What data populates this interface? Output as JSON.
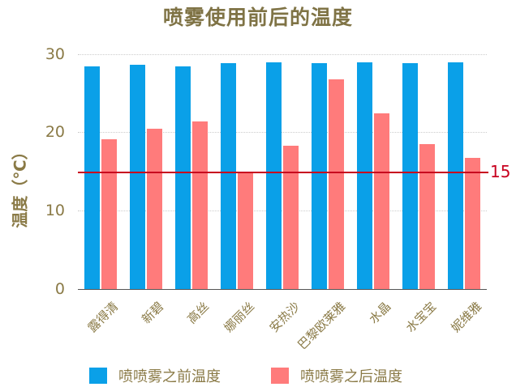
{
  "chart_data": {
    "type": "bar",
    "title": "喷雾使用前后的温度",
    "xlabel": "",
    "ylabel": "温度（℃）",
    "ylim": [
      0,
      30
    ],
    "yticks": [
      0,
      10,
      20,
      30
    ],
    "grid": true,
    "legend_position": "bottom",
    "categories": [
      "露得清",
      "新碧",
      "高丝",
      "娜丽丝",
      "安热沙",
      "巴黎欧莱雅",
      "水晶",
      "水宝宝",
      "妮维雅"
    ],
    "series": [
      {
        "name": "喷喷雾之前温度",
        "color": "#0aa0e8",
        "values": [
          28.4,
          28.6,
          28.4,
          28.9,
          29.0,
          28.9,
          29.0,
          28.9,
          29.0
        ]
      },
      {
        "name": "喷喷雾之后温度",
        "color": "#ff7b7b",
        "values": [
          19.1,
          20.5,
          21.4,
          14.8,
          18.3,
          26.8,
          22.4,
          18.5,
          16.8
        ]
      }
    ],
    "annotations": [
      {
        "type": "hline",
        "y": 15,
        "label": "15",
        "color": "#c8001e"
      }
    ]
  },
  "ticks": [
    "30",
    "20",
    "10",
    "0"
  ],
  "ref_label": "15"
}
